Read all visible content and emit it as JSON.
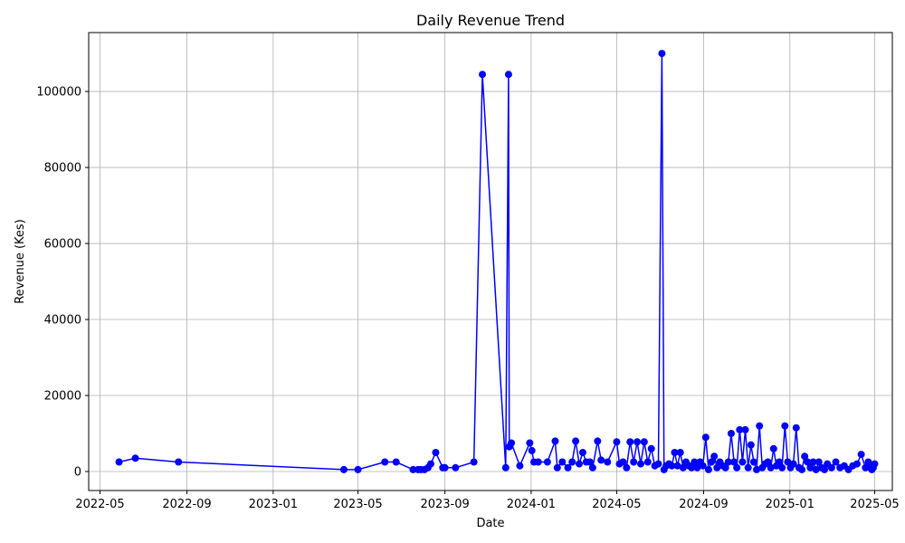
{
  "chart_data": {
    "type": "line",
    "title": "Daily Revenue Trend",
    "xlabel": "Date",
    "ylabel": "Revenue (Kes)",
    "x_tick_labels": [
      "2022-05",
      "2022-09",
      "2023-01",
      "2023-05",
      "2023-09",
      "2024-01",
      "2024-05",
      "2024-09",
      "2025-01",
      "2025-05"
    ],
    "y_ticks": [
      0,
      20000,
      40000,
      60000,
      80000,
      100000
    ],
    "xlim": [
      "2022-04-15",
      "2025-05-26"
    ],
    "ylim": [
      -5000,
      115500
    ],
    "grid": true,
    "line_color": "#0000ff",
    "marker": "circle",
    "series": [
      {
        "x": [
          "2022-05-28",
          "2022-06-20",
          "2022-08-20",
          "2023-04-11",
          "2023-05-01",
          "2023-06-08",
          "2023-06-24",
          "2023-07-18",
          "2023-07-25",
          "2023-07-29",
          "2023-08-03",
          "2023-08-08",
          "2023-08-12",
          "2023-08-19",
          "2023-08-29",
          "2023-09-01",
          "2023-09-16",
          "2023-10-12",
          "2023-10-24",
          "2023-11-26",
          "2023-11-30",
          "2023-12-01",
          "2023-12-04",
          "2023-12-16",
          "2023-12-30",
          "2024-01-02",
          "2024-01-05",
          "2024-01-11",
          "2024-01-24",
          "2024-02-04",
          "2024-02-07",
          "2024-02-14",
          "2024-02-22",
          "2024-02-28",
          "2024-03-04",
          "2024-03-09",
          "2024-03-14",
          "2024-03-19",
          "2024-03-24",
          "2024-03-28",
          "2024-04-04",
          "2024-04-09",
          "2024-04-18",
          "2024-05-01",
          "2024-05-05",
          "2024-05-10",
          "2024-05-15",
          "2024-05-20",
          "2024-05-25",
          "2024-05-30",
          "2024-06-04",
          "2024-06-09",
          "2024-06-14",
          "2024-06-19",
          "2024-06-24",
          "2024-06-29",
          "2024-07-04",
          "2024-07-07",
          "2024-07-10",
          "2024-07-14",
          "2024-07-18",
          "2024-07-22",
          "2024-07-26",
          "2024-07-30",
          "2024-08-03",
          "2024-08-07",
          "2024-08-11",
          "2024-08-15",
          "2024-08-19",
          "2024-08-23",
          "2024-08-27",
          "2024-08-31",
          "2024-09-04",
          "2024-09-08",
          "2024-09-12",
          "2024-09-16",
          "2024-09-20",
          "2024-09-24",
          "2024-09-28",
          "2024-10-02",
          "2024-10-06",
          "2024-10-10",
          "2024-10-14",
          "2024-10-18",
          "2024-10-22",
          "2024-10-26",
          "2024-10-30",
          "2024-11-03",
          "2024-11-07",
          "2024-11-11",
          "2024-11-15",
          "2024-11-19",
          "2024-11-23",
          "2024-11-27",
          "2024-12-01",
          "2024-12-05",
          "2024-12-09",
          "2024-12-13",
          "2024-12-17",
          "2024-12-21",
          "2024-12-25",
          "2024-12-29",
          "2025-01-02",
          "2025-01-06",
          "2025-01-10",
          "2025-01-14",
          "2025-01-18",
          "2025-01-22",
          "2025-01-26",
          "2025-01-30",
          "2025-02-03",
          "2025-02-07",
          "2025-02-11",
          "2025-02-15",
          "2025-02-19",
          "2025-02-23",
          "2025-03-01",
          "2025-03-07",
          "2025-03-13",
          "2025-03-19",
          "2025-03-25",
          "2025-03-31",
          "2025-04-06",
          "2025-04-12",
          "2025-04-18",
          "2025-04-22",
          "2025-04-25",
          "2025-04-27",
          "2025-04-29",
          "2025-05-01"
        ],
        "values": [
          2500,
          3500,
          2500,
          500,
          500,
          2500,
          2500,
          500,
          500,
          500,
          500,
          1000,
          2000,
          5000,
          1000,
          1000,
          1000,
          2500,
          104500,
          1000,
          104500,
          6500,
          7500,
          1500,
          7500,
          5500,
          2500,
          2500,
          2500,
          8000,
          1000,
          2500,
          1000,
          2500,
          8000,
          2000,
          5000,
          2500,
          2500,
          1000,
          8000,
          3000,
          2500,
          7800,
          2000,
          2500,
          1000,
          7800,
          2500,
          7800,
          2000,
          7800,
          2500,
          6000,
          1500,
          2000,
          110000,
          500,
          1500,
          2000,
          1500,
          5000,
          1500,
          5000,
          1000,
          2500,
          1500,
          1000,
          2500,
          1000,
          2500,
          1500,
          9000,
          500,
          2500,
          4000,
          1000,
          2500,
          1500,
          1000,
          2500,
          10000,
          2500,
          1000,
          11000,
          2500,
          11000,
          1000,
          7000,
          2500,
          500,
          12000,
          1000,
          2000,
          2500,
          1000,
          6000,
          1500,
          2500,
          1000,
          12000,
          2500,
          1000,
          2000,
          11500,
          1000,
          500,
          4000,
          2500,
          1000,
          2500,
          500,
          2500,
          1000,
          500,
          2000,
          1000,
          2500,
          1000,
          1500,
          500,
          1500,
          2000,
          4500,
          1000,
          2500,
          1000,
          500,
          1000,
          2000
        ]
      }
    ]
  }
}
